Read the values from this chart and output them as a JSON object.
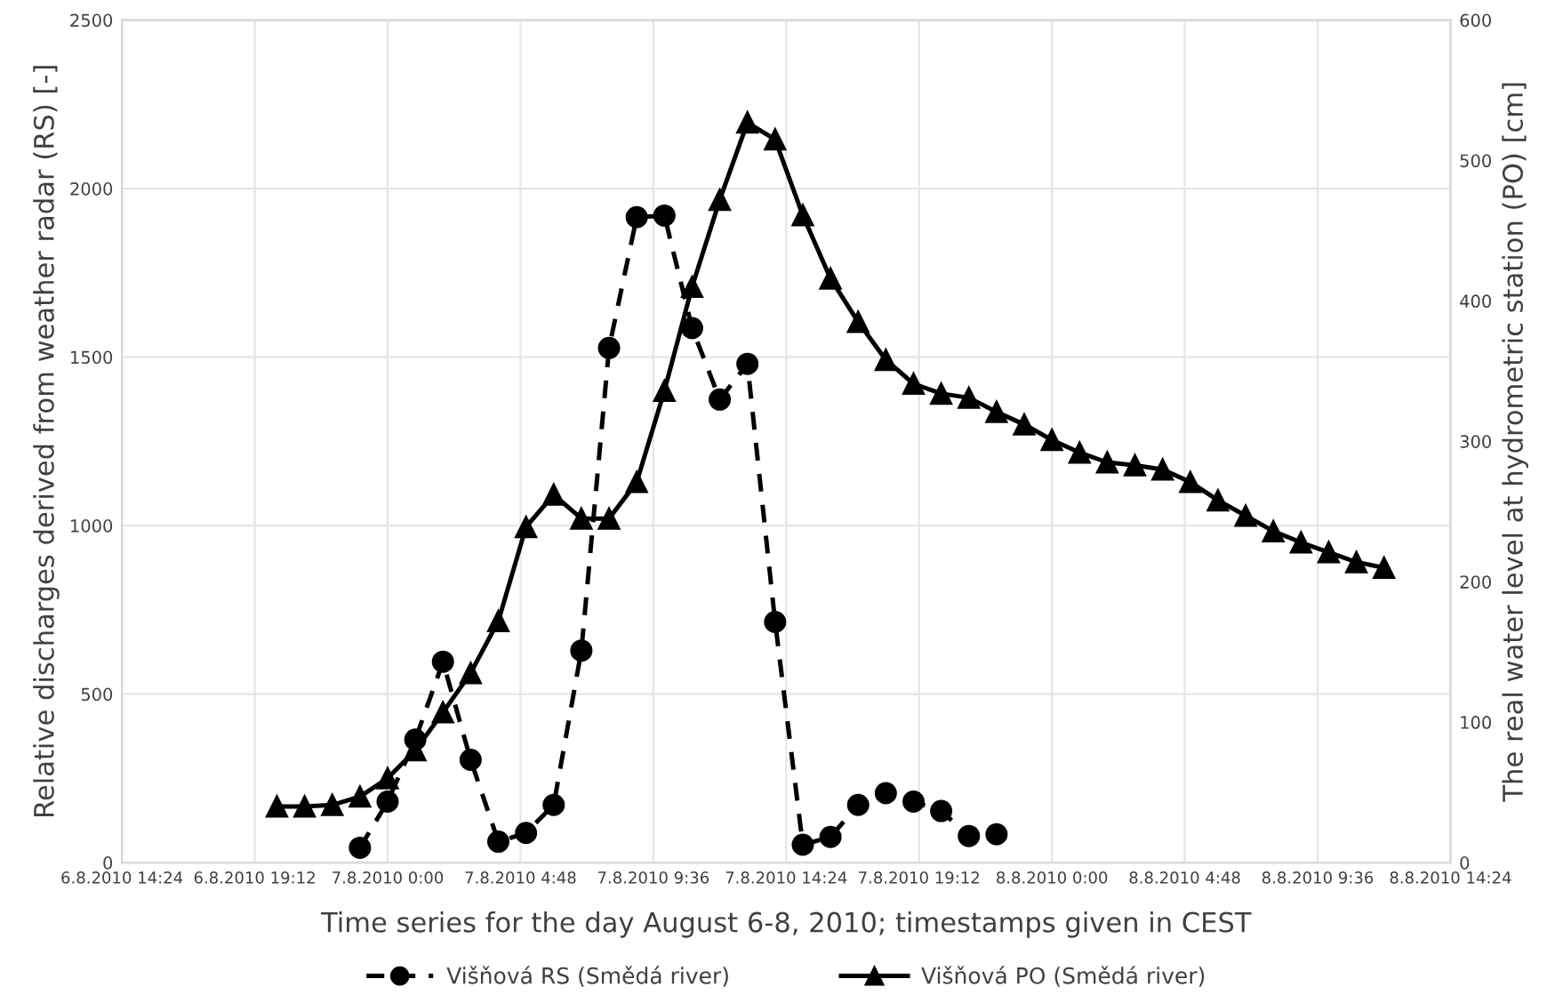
{
  "chart_data": {
    "type": "line",
    "xlabel": "Time series for the day August 6-8, 2010; timestamps given in CEST",
    "ylabel": "Relative discharges derived from weather radar (RS) [-]",
    "y2label": "The real water level at hydrometric station (PO) [cm]",
    "xlim": [
      "2010-08-06T14:24",
      "2010-08-08T14:24"
    ],
    "xticks": [
      {
        "value": "2010-08-06T14:24",
        "label": "6.8.2010 14:24"
      },
      {
        "value": "2010-08-06T19:12",
        "label": "6.8.2010 19:12"
      },
      {
        "value": "2010-08-07T00:00",
        "label": "7.8.2010 0:00"
      },
      {
        "value": "2010-08-07T04:48",
        "label": "7.8.2010 4:48"
      },
      {
        "value": "2010-08-07T09:36",
        "label": "7.8.2010 9:36"
      },
      {
        "value": "2010-08-07T14:24",
        "label": "7.8.2010 14:24"
      },
      {
        "value": "2010-08-07T19:12",
        "label": "7.8.2010 19:12"
      },
      {
        "value": "2010-08-08T00:00",
        "label": "8.8.2010 0:00"
      },
      {
        "value": "2010-08-08T04:48",
        "label": "8.8.2010 4:48"
      },
      {
        "value": "2010-08-08T09:36",
        "label": "8.8.2010 9:36"
      },
      {
        "value": "2010-08-08T14:24",
        "label": "8.8.2010 14:24"
      }
    ],
    "ylim": [
      0,
      2500
    ],
    "yticks": [
      0,
      500,
      1000,
      1500,
      2000,
      2500
    ],
    "y2lim": [
      0,
      600
    ],
    "y2ticks": [
      0,
      100,
      200,
      300,
      400,
      500,
      600
    ],
    "grid": true,
    "legend": "bottom",
    "series": [
      {
        "name": "Višňová RS (Smědá river)",
        "color": "#000000",
        "marker": "circle",
        "line_style": "dashed",
        "x": [
          "2010-08-06T23:00",
          "2010-08-07T00:00",
          "2010-08-07T01:00",
          "2010-08-07T02:00",
          "2010-08-07T03:00",
          "2010-08-07T04:00",
          "2010-08-07T05:00",
          "2010-08-07T06:00",
          "2010-08-07T07:00",
          "2010-08-07T08:00",
          "2010-08-07T09:00",
          "2010-08-07T10:00",
          "2010-08-07T11:00",
          "2010-08-07T12:00",
          "2010-08-07T13:00",
          "2010-08-07T14:00",
          "2010-08-07T15:00",
          "2010-08-07T16:00",
          "2010-08-07T17:00",
          "2010-08-07T18:00",
          "2010-08-07T19:00",
          "2010-08-07T20:00",
          "2010-08-07T21:00",
          "2010-08-07T22:00"
        ],
        "values": [
          44,
          181,
          365,
          596,
          305,
          62,
          88,
          171,
          629,
          1527,
          1915,
          1920,
          1586,
          1374,
          1480,
          714,
          53,
          76,
          171,
          206,
          181,
          153,
          79,
          84
        ]
      },
      {
        "name": "Višňová PO (Smědá river)",
        "color": "#000000",
        "marker": "triangle",
        "line_style": "solid",
        "axis": "y2",
        "x": [
          "2010-08-06T20:00",
          "2010-08-06T21:00",
          "2010-08-06T22:00",
          "2010-08-06T23:00",
          "2010-08-07T00:00",
          "2010-08-07T01:00",
          "2010-08-07T02:00",
          "2010-08-07T03:00",
          "2010-08-07T04:00",
          "2010-08-07T05:00",
          "2010-08-07T06:00",
          "2010-08-07T07:00",
          "2010-08-07T08:00",
          "2010-08-07T09:00",
          "2010-08-07T10:00",
          "2010-08-07T11:00",
          "2010-08-07T12:00",
          "2010-08-07T13:00",
          "2010-08-07T14:00",
          "2010-08-07T15:00",
          "2010-08-07T16:00",
          "2010-08-07T17:00",
          "2010-08-07T18:00",
          "2010-08-07T19:00",
          "2010-08-07T20:00",
          "2010-08-07T21:00",
          "2010-08-07T22:00",
          "2010-08-07T23:00",
          "2010-08-08T00:00",
          "2010-08-08T01:00",
          "2010-08-08T02:00",
          "2010-08-08T03:00",
          "2010-08-08T04:00",
          "2010-08-08T05:00",
          "2010-08-08T06:00",
          "2010-08-08T07:00",
          "2010-08-08T08:00",
          "2010-08-08T09:00",
          "2010-08-08T10:00",
          "2010-08-08T11:00",
          "2010-08-08T12:00"
        ],
        "values": [
          40,
          40,
          41,
          47,
          60,
          80,
          107,
          135,
          172,
          239,
          262,
          245,
          245,
          271,
          336,
          410,
          472,
          527,
          515,
          461,
          416,
          385,
          358,
          341,
          334,
          331,
          321,
          312,
          301,
          292,
          285,
          283,
          280,
          271,
          258,
          247,
          236,
          228,
          221,
          214,
          210
        ]
      }
    ]
  }
}
